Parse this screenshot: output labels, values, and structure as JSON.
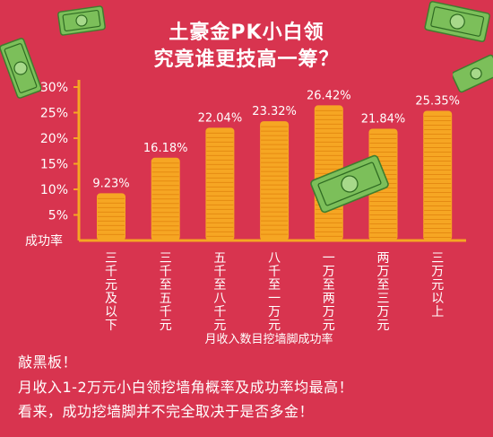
{
  "title_line1": "土豪金PK小白领",
  "title_line2": "究竟谁更技高一筹？",
  "colors": {
    "background": "#d8344f",
    "bar": "#f6a623",
    "bar_stripe": "#e58a12",
    "axis": "#f5a623",
    "text": "#ffffff",
    "money": "#7cbf5a"
  },
  "chart_data": {
    "type": "bar",
    "categories": [
      "三千元及以下",
      "三千至五千元",
      "五千至八千元",
      "八千至一万元",
      "一万至两万元",
      "两万至三万元",
      "三万元以上"
    ],
    "values": [
      9.23,
      16.18,
      22.04,
      23.32,
      26.42,
      21.84,
      25.35
    ],
    "value_labels": [
      "9.23%",
      "16.18%",
      "22.04%",
      "23.32%",
      "26.42%",
      "21.84%",
      "25.35%"
    ],
    "yticks": [
      "5%",
      "10%",
      "15%",
      "20%",
      "25%",
      "30%"
    ],
    "ylim": [
      0,
      30
    ],
    "ylabel": "成功率",
    "xlabel": "月收入数目挖墙脚成功率",
    "legend": "none",
    "grid": false
  },
  "footnote": {
    "heading": "敲黑板！",
    "line1": "月收入1-2万元小白领挖墙角概率及成功率均最高！",
    "line2": "看来，成功挖墙脚并不完全取决于是否多金！"
  },
  "decor": {
    "icon": "money-bill-icon"
  }
}
